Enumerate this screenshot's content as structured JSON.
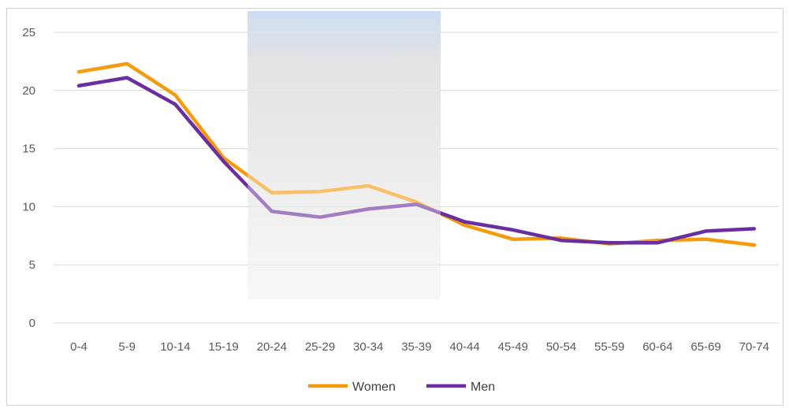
{
  "chart_data": {
    "type": "line",
    "title": "",
    "xlabel": "",
    "ylabel": "",
    "categories": [
      "0-4",
      "5-9",
      "10-14",
      "15-19",
      "20-24",
      "25-29",
      "30-34",
      "35-39",
      "40-44",
      "45-49",
      "50-54",
      "55-59",
      "60-64",
      "65-69",
      "70-74"
    ],
    "ylim": [
      0,
      25
    ],
    "yticks": [
      "0",
      "5",
      "10",
      "15",
      "20",
      "25"
    ],
    "grid": true,
    "legend_position": "bottom",
    "highlight": {
      "from": "20-24",
      "to": "35-39"
    },
    "series": [
      {
        "name": "Women",
        "color": "#f59a0a",
        "values": [
          21.6,
          22.3,
          19.6,
          14.2,
          11.2,
          11.3,
          11.8,
          10.4,
          8.4,
          7.2,
          7.3,
          6.8,
          7.1,
          7.2,
          6.7
        ]
      },
      {
        "name": "Men",
        "color": "#6b2ea0",
        "values": [
          20.4,
          21.1,
          18.8,
          13.9,
          9.6,
          9.1,
          9.8,
          10.2,
          8.7,
          8.0,
          7.1,
          6.9,
          6.9,
          7.9,
          8.1
        ]
      }
    ]
  }
}
